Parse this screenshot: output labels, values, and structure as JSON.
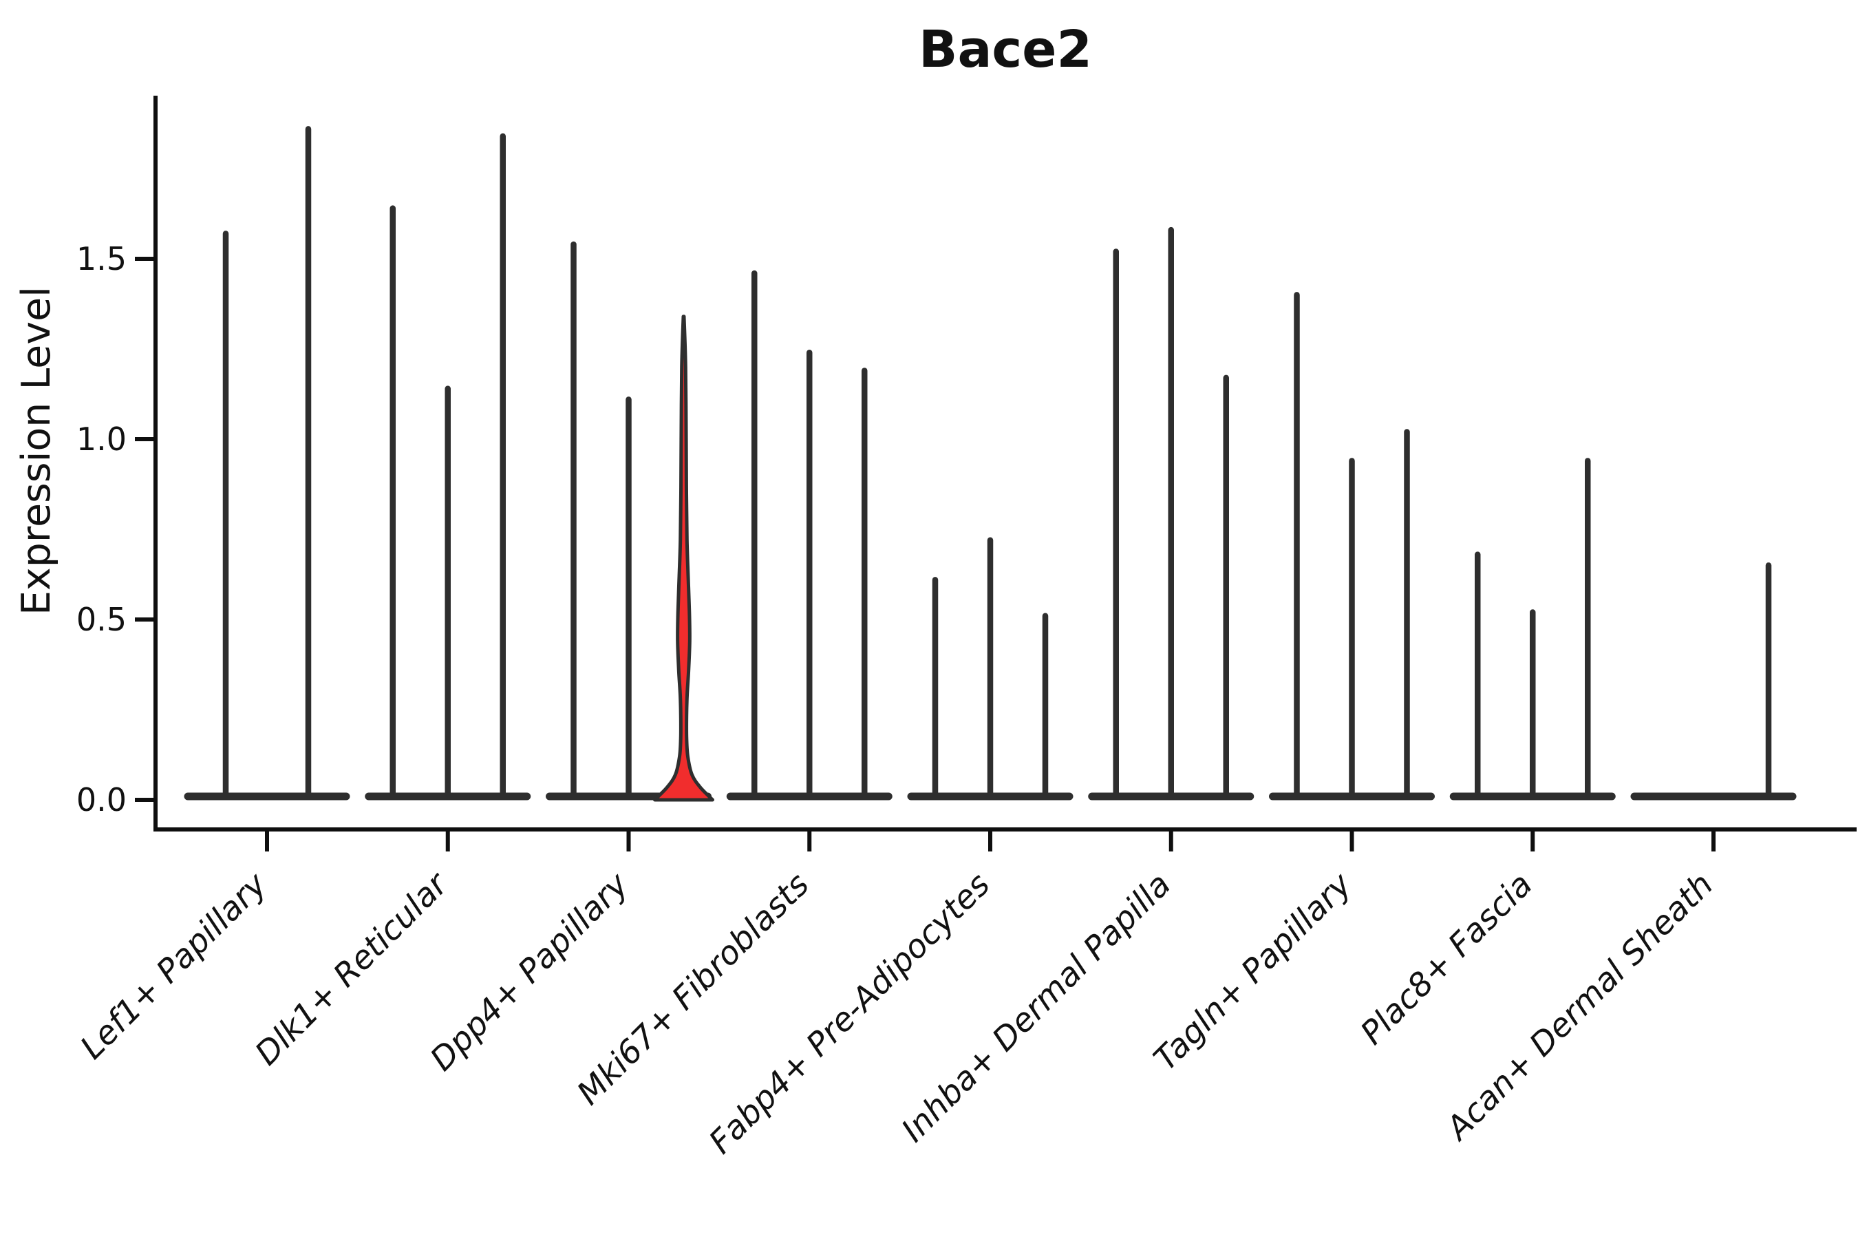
{
  "title": "Bace2",
  "colors": {
    "axis": "#0f0f0f",
    "violin_edge": "#2e2e2e",
    "highlight_fill": "#f12d2d",
    "text": "#111111",
    "background": "#ffffff"
  },
  "chart_data": {
    "type": "violin",
    "title": "Bace2",
    "xlabel": "",
    "ylabel": "Expression Level",
    "yticks": [
      0.0,
      0.5,
      1.0,
      1.5
    ],
    "ytick_labels": [
      "0.0",
      "0.5",
      "1.0",
      "1.5"
    ],
    "ylim": [
      -0.09,
      1.95
    ],
    "grid": false,
    "legend": "none",
    "categories": [
      "Lef1+ Papillary",
      "Dlk1+ Reticular",
      "Dpp4+ Papillary",
      "Mki67+ Fibroblasts",
      "Fabp4+ Pre-Adipocytes",
      "Inhba+ Dermal Papilla",
      "Tagln+ Papillary",
      "Plac8+ Fascia",
      "Acan+ Dermal Sheath"
    ],
    "groups": [
      {
        "label": "Lef1+ Papillary",
        "violin_max_values": [
          1.57,
          1.86
        ]
      },
      {
        "label": "Dlk1+ Reticular",
        "violin_max_values": [
          1.64,
          1.14,
          1.84
        ]
      },
      {
        "label": "Dpp4+ Papillary",
        "violin_max_values": [
          1.54,
          1.11,
          1.34
        ],
        "highlight_index": 2
      },
      {
        "label": "Mki67+ Fibroblasts",
        "violin_max_values": [
          1.46,
          1.24,
          1.19
        ]
      },
      {
        "label": "Fabp4+ Pre-Adipocytes",
        "violin_max_values": [
          0.61,
          0.72,
          0.51
        ]
      },
      {
        "label": "Inhba+ Dermal Papilla",
        "violin_max_values": [
          1.52,
          1.58,
          1.17
        ]
      },
      {
        "label": "Tagln+ Papillary",
        "violin_max_values": [
          1.4,
          0.94,
          1.02
        ]
      },
      {
        "label": "Plac8+ Fascia",
        "violin_max_values": [
          0.68,
          0.52,
          0.94
        ]
      },
      {
        "label": "Acan+ Dermal Sheath",
        "violin_max_values": [
          0.0,
          0.0,
          0.65
        ]
      }
    ],
    "highlight": {
      "group": "Dpp4+ Papillary",
      "violin_index": 2,
      "fill": "#f12d2d",
      "max_value": 1.34,
      "bulge_peak_value": 0.44,
      "bulge_range": [
        0.27,
        0.64
      ],
      "base_flat_range": [
        0.0,
        0.12
      ]
    }
  }
}
